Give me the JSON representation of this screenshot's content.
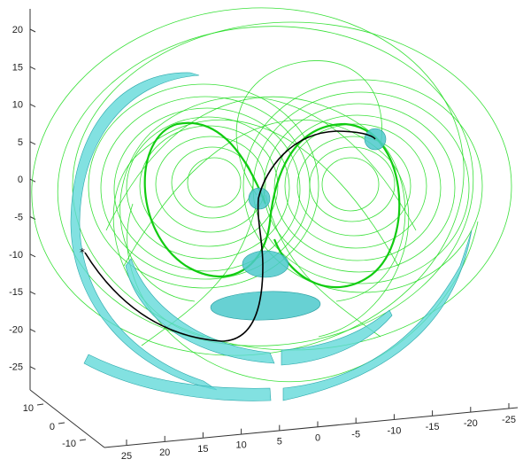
{
  "figure": {
    "z_axis": {
      "ticks": [
        "20",
        "15",
        "10",
        "5",
        "0",
        "-5",
        "-10",
        "-15",
        "-20",
        "-25"
      ]
    },
    "y_axis": {
      "ticks": [
        "10",
        "0",
        "-10"
      ]
    },
    "x_axis": {
      "ticks": [
        "25",
        "20",
        "15",
        "10",
        "5",
        "0",
        "-5",
        "-10",
        "-15",
        "-20",
        "-25"
      ]
    },
    "start_marker": "*",
    "colors": {
      "orbits": "#22dd22",
      "tubes": "#5fd8d8",
      "trajectory": "#000000",
      "axes": "#333333"
    }
  }
}
